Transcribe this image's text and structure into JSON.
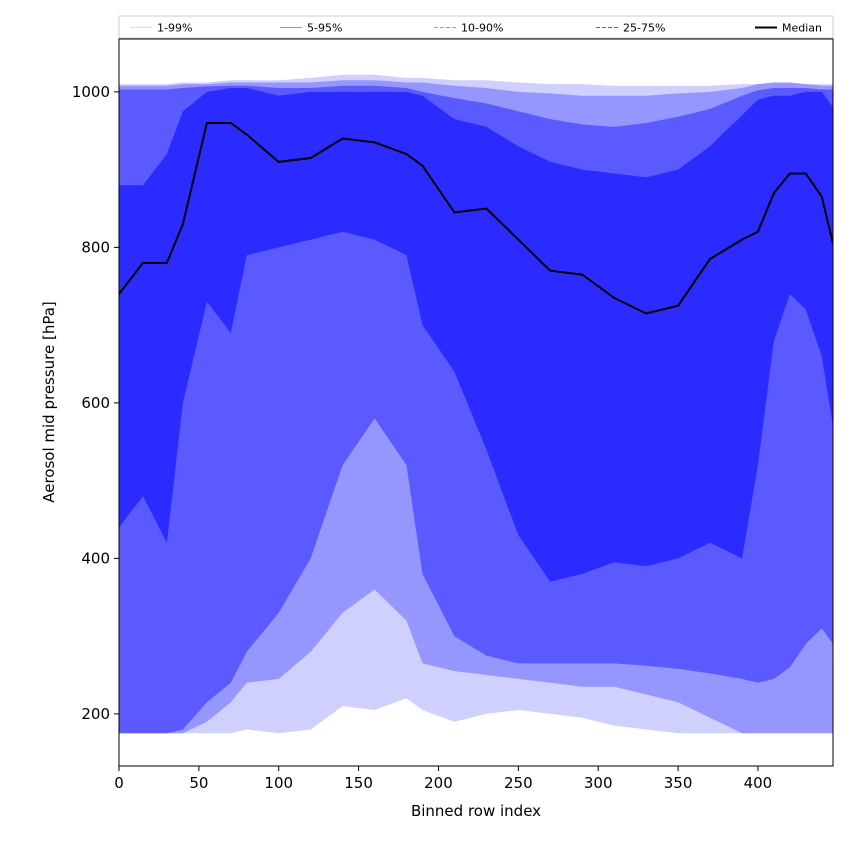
{
  "chart_data": {
    "type": "area",
    "title": "",
    "xlabel": "Binned row index",
    "ylabel": "Aerosol mid pressure [hPa]",
    "xlim": [
      0,
      447
    ],
    "ylim": [
      133,
      1068
    ],
    "xticks": [
      0,
      50,
      100,
      150,
      200,
      250,
      300,
      350,
      400
    ],
    "yticks": [
      200,
      400,
      600,
      800,
      1000
    ],
    "grid": false,
    "legend_position": "top",
    "x": [
      0,
      15,
      30,
      40,
      55,
      70,
      80,
      100,
      120,
      140,
      160,
      180,
      190,
      210,
      230,
      250,
      270,
      290,
      310,
      330,
      350,
      370,
      390,
      400,
      410,
      420,
      430,
      440,
      447
    ],
    "bands": [
      {
        "name": "1-99%",
        "color": "#d0d0ff",
        "line_color": "#dcdcdc",
        "line_style": "solid",
        "lower": [
          175,
          175,
          175,
          175,
          175,
          175,
          180,
          175,
          180,
          210,
          205,
          220,
          205,
          190,
          200,
          205,
          200,
          195,
          185,
          180,
          175,
          175,
          175,
          175,
          175,
          175,
          175,
          175,
          175
        ],
        "upper": [
          1010,
          1010,
          1010,
          1012,
          1012,
          1015,
          1015,
          1015,
          1018,
          1022,
          1022,
          1018,
          1018,
          1015,
          1015,
          1012,
          1010,
          1010,
          1008,
          1008,
          1008,
          1008,
          1010,
          1010,
          1012,
          1010,
          1010,
          1010,
          1010
        ]
      },
      {
        "name": "5-95%",
        "color": "#9696ff",
        "line_color": "#8f8fd6",
        "line_style": "solid",
        "lower": [
          175,
          175,
          175,
          175,
          190,
          215,
          240,
          245,
          280,
          330,
          360,
          320,
          265,
          255,
          250,
          245,
          240,
          235,
          235,
          225,
          215,
          195,
          175,
          175,
          175,
          175,
          175,
          175,
          175
        ],
        "upper": [
          1008,
          1008,
          1008,
          1010,
          1010,
          1012,
          1012,
          1012,
          1012,
          1015,
          1015,
          1012,
          1012,
          1008,
          1005,
          1000,
          998,
          995,
          995,
          995,
          998,
          1000,
          1005,
          1010,
          1012,
          1012,
          1010,
          1008,
          1008
        ]
      },
      {
        "name": "10-90%",
        "color": "#5a5aff",
        "line_color": "#8f8fe8",
        "line_style": "dashed",
        "lower": [
          175,
          175,
          175,
          180,
          215,
          240,
          280,
          330,
          400,
          520,
          580,
          520,
          380,
          300,
          275,
          265,
          265,
          265,
          265,
          262,
          258,
          252,
          245,
          240,
          245,
          260,
          290,
          310,
          290
        ],
        "upper": [
          1003,
          1003,
          1003,
          1005,
          1007,
          1008,
          1008,
          1005,
          1005,
          1008,
          1008,
          1005,
          1000,
          992,
          985,
          975,
          965,
          958,
          955,
          960,
          968,
          978,
          995,
          1002,
          1005,
          1005,
          1005,
          1003,
          1003
        ]
      },
      {
        "name": "25-75%",
        "color": "#2b2bff",
        "line_color": "#5a5ac8",
        "line_style": "dashed",
        "lower": [
          440,
          480,
          420,
          600,
          730,
          690,
          790,
          800,
          810,
          820,
          810,
          790,
          700,
          640,
          540,
          430,
          370,
          380,
          395,
          390,
          400,
          420,
          400,
          520,
          680,
          740,
          720,
          660,
          570
        ],
        "upper": [
          880,
          880,
          920,
          975,
          1000,
          1005,
          1005,
          995,
          1000,
          1000,
          1000,
          1000,
          995,
          965,
          955,
          930,
          910,
          900,
          895,
          890,
          900,
          930,
          970,
          990,
          995,
          995,
          1000,
          1000,
          980
        ]
      }
    ],
    "series": [
      {
        "name": "Median",
        "color": "#000000",
        "values": [
          740,
          780,
          780,
          830,
          960,
          960,
          945,
          910,
          915,
          940,
          935,
          920,
          905,
          845,
          850,
          810,
          770,
          765,
          735,
          715,
          725,
          785,
          810,
          820,
          870,
          895,
          895,
          865,
          805
        ]
      }
    ],
    "legend": [
      "1-99%",
      "5-95%",
      "10-90%",
      "25-75%",
      "Median"
    ]
  }
}
